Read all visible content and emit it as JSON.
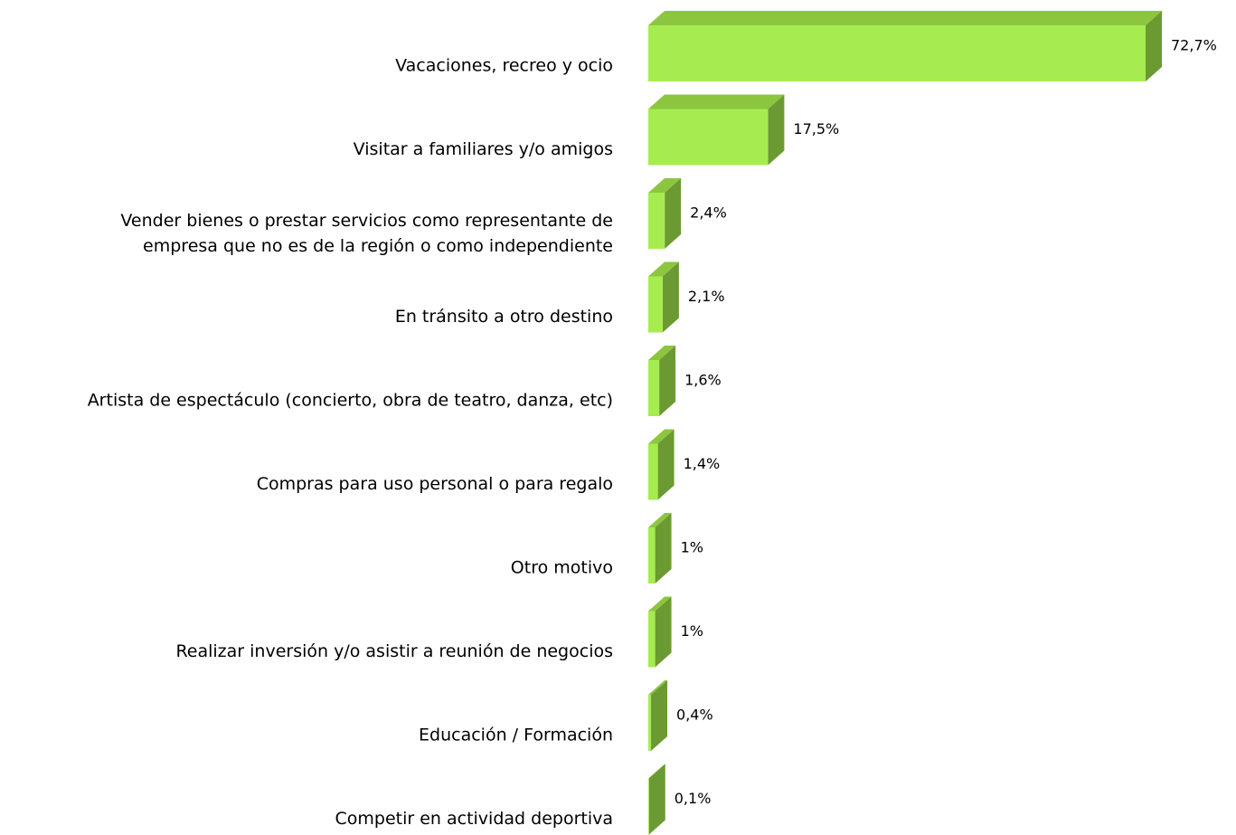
{
  "chart_data": {
    "type": "bar3d",
    "orientation": "horizontal",
    "categories": [
      "Vacaciones, recreo y ocio",
      "Visitar a familiares y/o amigos",
      "Vender bienes o prestar servicios como representante de\nempresa que no es de la región o como independiente",
      "En tránsito a otro destino",
      "Artista de espectáculo (concierto, obra de teatro, danza, etc)",
      "Compras para uso personal o para regalo",
      "Otro motivo",
      "Realizar inversión y/o asistir a reunión de negocios",
      "Educación / Formación",
      "Competir en actividad deportiva"
    ],
    "values": [
      72.7,
      17.5,
      2.4,
      2.1,
      1.6,
      1.4,
      1,
      1,
      0.4,
      0.1
    ],
    "value_labels": [
      "72,7%",
      "17,5%",
      "2,4%",
      "2,1%",
      "1,6%",
      "1,4%",
      "1%",
      "1%",
      "0,4%",
      "0,1%"
    ],
    "colors": {
      "front": "#a6ec50",
      "top": "#8cc63f",
      "side": "#6b9a32"
    }
  }
}
